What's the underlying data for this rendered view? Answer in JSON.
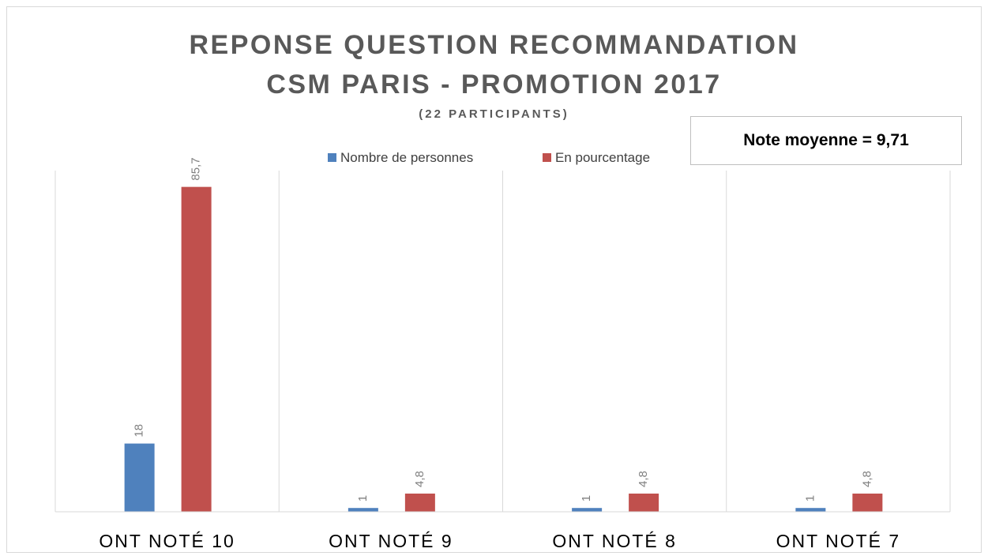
{
  "chart_data": {
    "type": "bar",
    "title": "REPONSE QUESTION RECOMMANDATION\nCSM PARIS - PROMOTION 2017",
    "subtitle": "(22 PARTICIPANTS)",
    "annotation": "Note moyenne = 9,71",
    "categories": [
      "ONT NOTÉ 10",
      "ONT NOTÉ 9",
      "ONT NOTÉ 8",
      "ONT NOTÉ 7"
    ],
    "series": [
      {
        "name": "Nombre de personnes",
        "color": "#4f81bd",
        "values": [
          18,
          1,
          1,
          1
        ]
      },
      {
        "name": "En pourcentage",
        "color": "#c0504d",
        "values": [
          85.7,
          4.8,
          4.8,
          4.8
        ],
        "value_labels": [
          "85,7",
          "4,8",
          "4,8",
          "4,8"
        ]
      }
    ],
    "ylim": [
      0,
      90
    ],
    "legend": "top"
  }
}
